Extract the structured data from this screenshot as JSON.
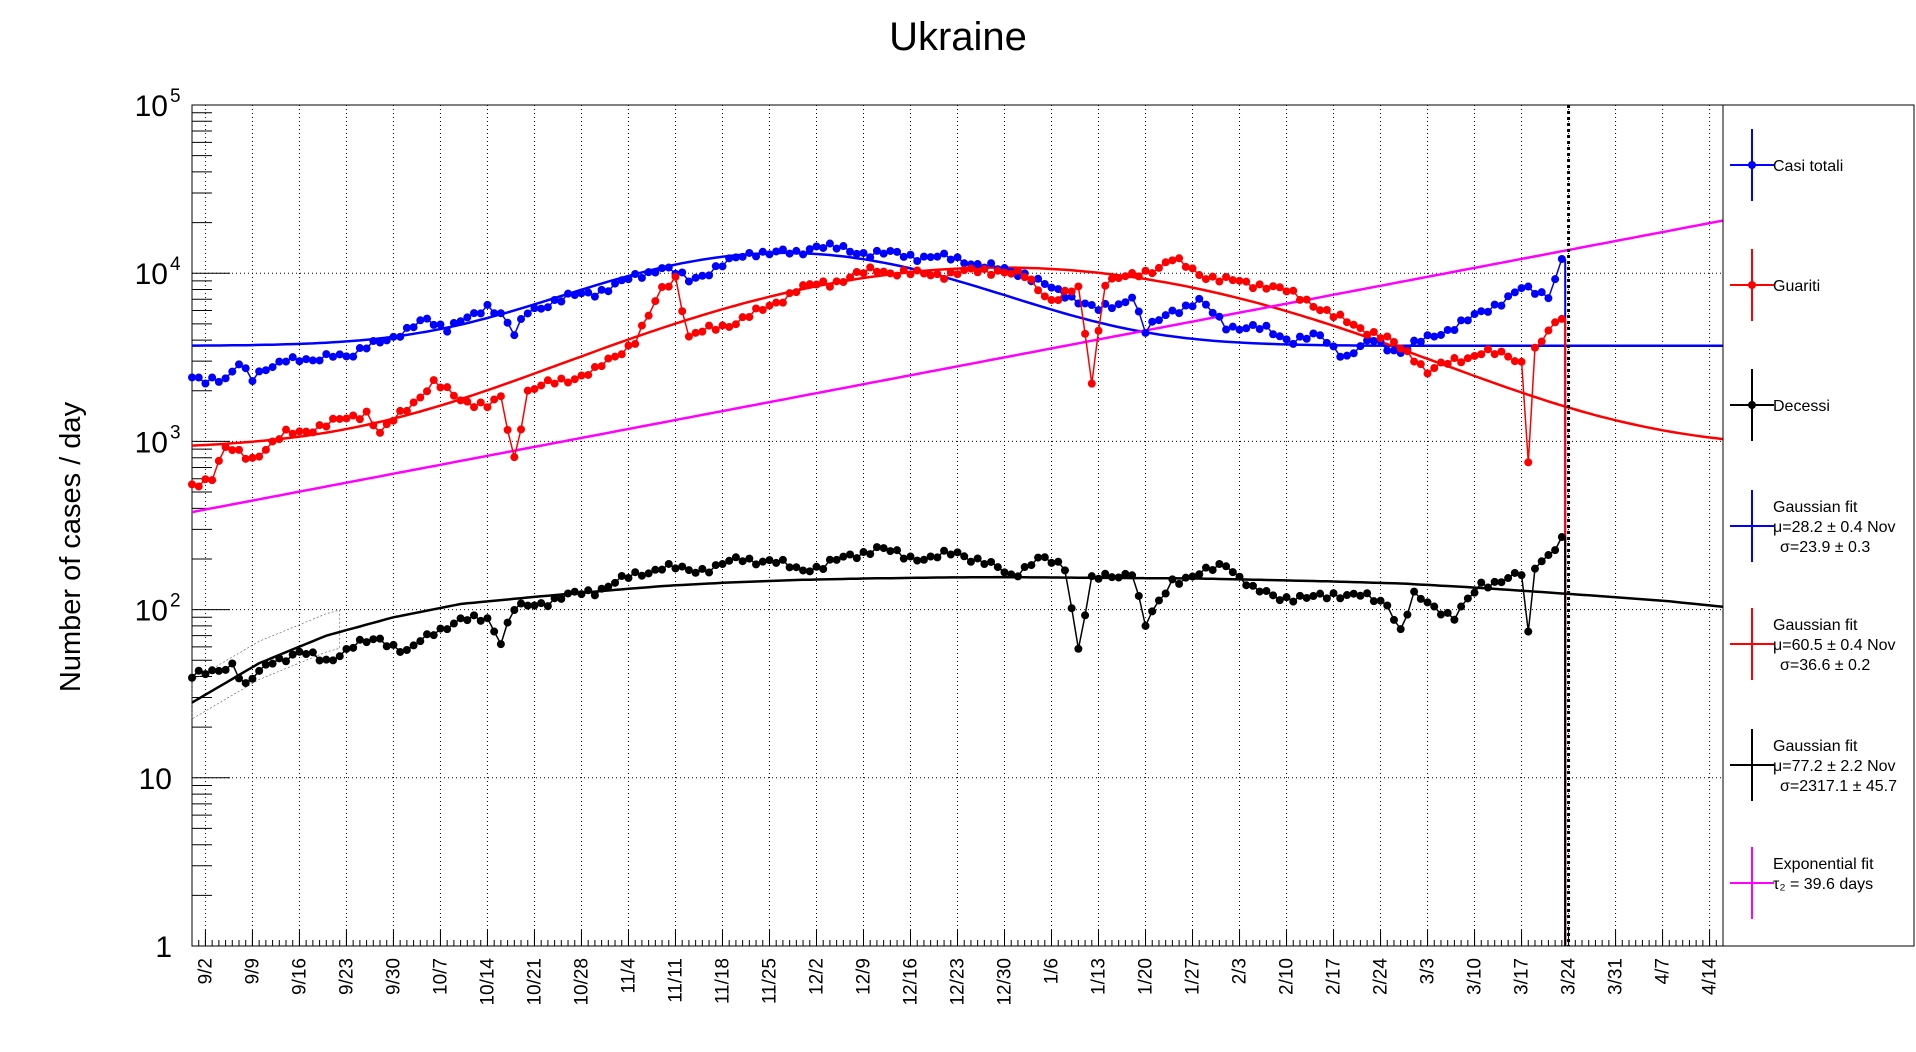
{
  "chart_data": {
    "type": "line",
    "title": "Ukraine",
    "xlabel": "",
    "ylabel": "Number of cases / day",
    "y_scale": "log",
    "ylim": [
      1,
      100000
    ],
    "y_ticks": [
      {
        "value": 1,
        "base": "1",
        "exp": ""
      },
      {
        "value": 10,
        "base": "10",
        "exp": ""
      },
      {
        "value": 100,
        "base": "10",
        "exp": "2"
      },
      {
        "value": 1000,
        "base": "10",
        "exp": "3"
      },
      {
        "value": 10000,
        "base": "10",
        "exp": "4"
      },
      {
        "value": 100000,
        "base": "10",
        "exp": "5"
      }
    ],
    "x_ticks": [
      "9/2",
      "9/9",
      "9/16",
      "9/23",
      "9/30",
      "10/7",
      "10/14",
      "10/21",
      "10/28",
      "11/4",
      "11/11",
      "11/18",
      "11/25",
      "12/2",
      "12/9",
      "12/16",
      "12/23",
      "12/30",
      "1/6",
      "1/13",
      "1/20",
      "1/27",
      "2/3",
      "2/10",
      "2/17",
      "2/24",
      "3/3",
      "3/10",
      "3/17",
      "3/24",
      "3/31",
      "4/7",
      "4/14"
    ],
    "xlim_days": [
      0,
      228
    ],
    "grid": true,
    "legend_position": "right",
    "last_data_day": 204,
    "series": [
      {
        "name": "Casi totali",
        "color": "#0000ff",
        "anchors": [
          [
            0,
            2400
          ],
          [
            2,
            2200
          ],
          [
            5,
            2400
          ],
          [
            7,
            3000
          ],
          [
            9,
            2300
          ],
          [
            14,
            3200
          ],
          [
            18,
            2900
          ],
          [
            21,
            3400
          ],
          [
            24,
            3200
          ],
          [
            28,
            4000
          ],
          [
            32,
            4500
          ],
          [
            35,
            5300
          ],
          [
            38,
            4800
          ],
          [
            42,
            5500
          ],
          [
            44,
            6400
          ],
          [
            46,
            5900
          ],
          [
            48,
            4300
          ],
          [
            50,
            5800
          ],
          [
            54,
            6900
          ],
          [
            60,
            7700
          ],
          [
            66,
            9400
          ],
          [
            70,
            11000
          ],
          [
            74,
            9000
          ],
          [
            78,
            10800
          ],
          [
            84,
            13500
          ],
          [
            90,
            13000
          ],
          [
            93,
            14800
          ],
          [
            98,
            13500
          ],
          [
            104,
            13000
          ],
          [
            110,
            12500
          ],
          [
            115,
            12000
          ],
          [
            120,
            10500
          ],
          [
            124,
            10000
          ],
          [
            128,
            8000
          ],
          [
            132,
            7000
          ],
          [
            135,
            6000
          ],
          [
            138,
            6500
          ],
          [
            140,
            7500
          ],
          [
            142,
            4500
          ],
          [
            146,
            6000
          ],
          [
            150,
            6800
          ],
          [
            154,
            4900
          ],
          [
            160,
            4600
          ],
          [
            164,
            4000
          ],
          [
            168,
            4200
          ],
          [
            172,
            3200
          ],
          [
            176,
            4000
          ],
          [
            180,
            3400
          ],
          [
            185,
            4300
          ],
          [
            190,
            5200
          ],
          [
            194,
            6500
          ],
          [
            198,
            8000
          ],
          [
            202,
            7500
          ],
          [
            204,
            12000
          ]
        ],
        "fit": {
          "type": "gaussian",
          "label": "Gaussian fit",
          "params": [
            "μ=28.2 ± 0.4 Nov",
            "σ=23.9 ± 0.3"
          ],
          "mu_day": 88.2,
          "sigma": 23.9,
          "const": 9500,
          "baseline": 3700,
          "range": [
            0,
            228
          ]
        }
      },
      {
        "name": "Guariti",
        "color": "#ff0000",
        "anchors": [
          [
            0,
            550
          ],
          [
            3,
            620
          ],
          [
            5,
            900
          ],
          [
            9,
            800
          ],
          [
            14,
            1100
          ],
          [
            20,
            1250
          ],
          [
            26,
            1500
          ],
          [
            28,
            1100
          ],
          [
            32,
            1600
          ],
          [
            36,
            2200
          ],
          [
            40,
            1800
          ],
          [
            44,
            1600
          ],
          [
            46,
            1800
          ],
          [
            48,
            800
          ],
          [
            50,
            2000
          ],
          [
            55,
            2300
          ],
          [
            60,
            2600
          ],
          [
            66,
            4000
          ],
          [
            68,
            5500
          ],
          [
            70,
            8000
          ],
          [
            72,
            9500
          ],
          [
            74,
            4200
          ],
          [
            80,
            5000
          ],
          [
            85,
            6000
          ],
          [
            90,
            8000
          ],
          [
            96,
            9000
          ],
          [
            102,
            10500
          ],
          [
            108,
            9800
          ],
          [
            114,
            10000
          ],
          [
            120,
            10500
          ],
          [
            124,
            9500
          ],
          [
            128,
            7000
          ],
          [
            132,
            8000
          ],
          [
            134,
            2300
          ],
          [
            136,
            9000
          ],
          [
            140,
            9500
          ],
          [
            144,
            11000
          ],
          [
            146,
            12000
          ],
          [
            150,
            10000
          ],
          [
            154,
            9000
          ],
          [
            160,
            8500
          ],
          [
            166,
            7000
          ],
          [
            170,
            5500
          ],
          [
            174,
            4800
          ],
          [
            178,
            4000
          ],
          [
            182,
            3200
          ],
          [
            184,
            2600
          ],
          [
            188,
            3000
          ],
          [
            192,
            3400
          ],
          [
            196,
            3200
          ],
          [
            198,
            3000
          ],
          [
            199,
            800
          ],
          [
            200,
            3500
          ],
          [
            204,
            5500
          ]
        ],
        "fit": {
          "type": "gaussian",
          "label": "Gaussian fit",
          "params": [
            "μ=60.5 ± 0.4 Nov",
            "σ=36.6 ± 0.2"
          ],
          "mu_day": 120.5,
          "sigma": 36.6,
          "const": 9900,
          "baseline": 900,
          "range": [
            0,
            228
          ]
        }
      },
      {
        "name": "Decessi",
        "color": "#000000",
        "anchors": [
          [
            0,
            40
          ],
          [
            3,
            42
          ],
          [
            6,
            48
          ],
          [
            8,
            35
          ],
          [
            12,
            50
          ],
          [
            16,
            55
          ],
          [
            20,
            50
          ],
          [
            24,
            60
          ],
          [
            28,
            68
          ],
          [
            32,
            55
          ],
          [
            36,
            75
          ],
          [
            40,
            85
          ],
          [
            44,
            90
          ],
          [
            46,
            65
          ],
          [
            48,
            100
          ],
          [
            52,
            110
          ],
          [
            56,
            120
          ],
          [
            60,
            130
          ],
          [
            66,
            160
          ],
          [
            70,
            180
          ],
          [
            74,
            170
          ],
          [
            78,
            180
          ],
          [
            82,
            200
          ],
          [
            86,
            195
          ],
          [
            90,
            175
          ],
          [
            94,
            180
          ],
          [
            98,
            210
          ],
          [
            102,
            230
          ],
          [
            106,
            210
          ],
          [
            110,
            200
          ],
          [
            114,
            220
          ],
          [
            118,
            190
          ],
          [
            122,
            160
          ],
          [
            126,
            200
          ],
          [
            130,
            180
          ],
          [
            132,
            60
          ],
          [
            134,
            150
          ],
          [
            138,
            160
          ],
          [
            140,
            170
          ],
          [
            142,
            80
          ],
          [
            146,
            150
          ],
          [
            150,
            160
          ],
          [
            154,
            190
          ],
          [
            158,
            130
          ],
          [
            162,
            120
          ],
          [
            166,
            115
          ],
          [
            170,
            125
          ],
          [
            174,
            120
          ],
          [
            178,
            110
          ],
          [
            180,
            75
          ],
          [
            182,
            120
          ],
          [
            186,
            100
          ],
          [
            188,
            90
          ],
          [
            192,
            140
          ],
          [
            196,
            155
          ],
          [
            198,
            160
          ],
          [
            199,
            70
          ],
          [
            200,
            180
          ],
          [
            204,
            260
          ]
        ],
        "fit": {
          "type": "gaussian",
          "label": "Gaussian fit",
          "params": [
            "μ=77.2 ± 2.2 Nov",
            "σ=2317.1 ± 45.7"
          ],
          "points": [
            [
              0,
              28
            ],
            [
              10,
              48
            ],
            [
              20,
              70
            ],
            [
              30,
              90
            ],
            [
              40,
              108
            ],
            [
              50,
              118
            ],
            [
              60,
              128
            ],
            [
              70,
              138
            ],
            [
              80,
              145
            ],
            [
              90,
              150
            ],
            [
              100,
              153
            ],
            [
              110,
              155
            ],
            [
              120,
              156
            ],
            [
              130,
              155
            ],
            [
              140,
              154
            ],
            [
              150,
              153
            ],
            [
              160,
              150
            ],
            [
              170,
              147
            ],
            [
              180,
              143
            ],
            [
              190,
              136
            ],
            [
              200,
              128
            ],
            [
              210,
              120
            ],
            [
              220,
              112
            ],
            [
              228,
              104
            ]
          ],
          "range": [
            0,
            228
          ]
        }
      },
      {
        "name": "Exponential fit",
        "color": "#ff00ff",
        "is_fit_only": true,
        "fit": {
          "type": "exponential",
          "label": "Exponential fit",
          "params": [
            "τ₂ = 39.6 days"
          ],
          "y0": 380,
          "doubling_days": 39.6,
          "range": [
            0,
            228
          ]
        }
      }
    ]
  }
}
